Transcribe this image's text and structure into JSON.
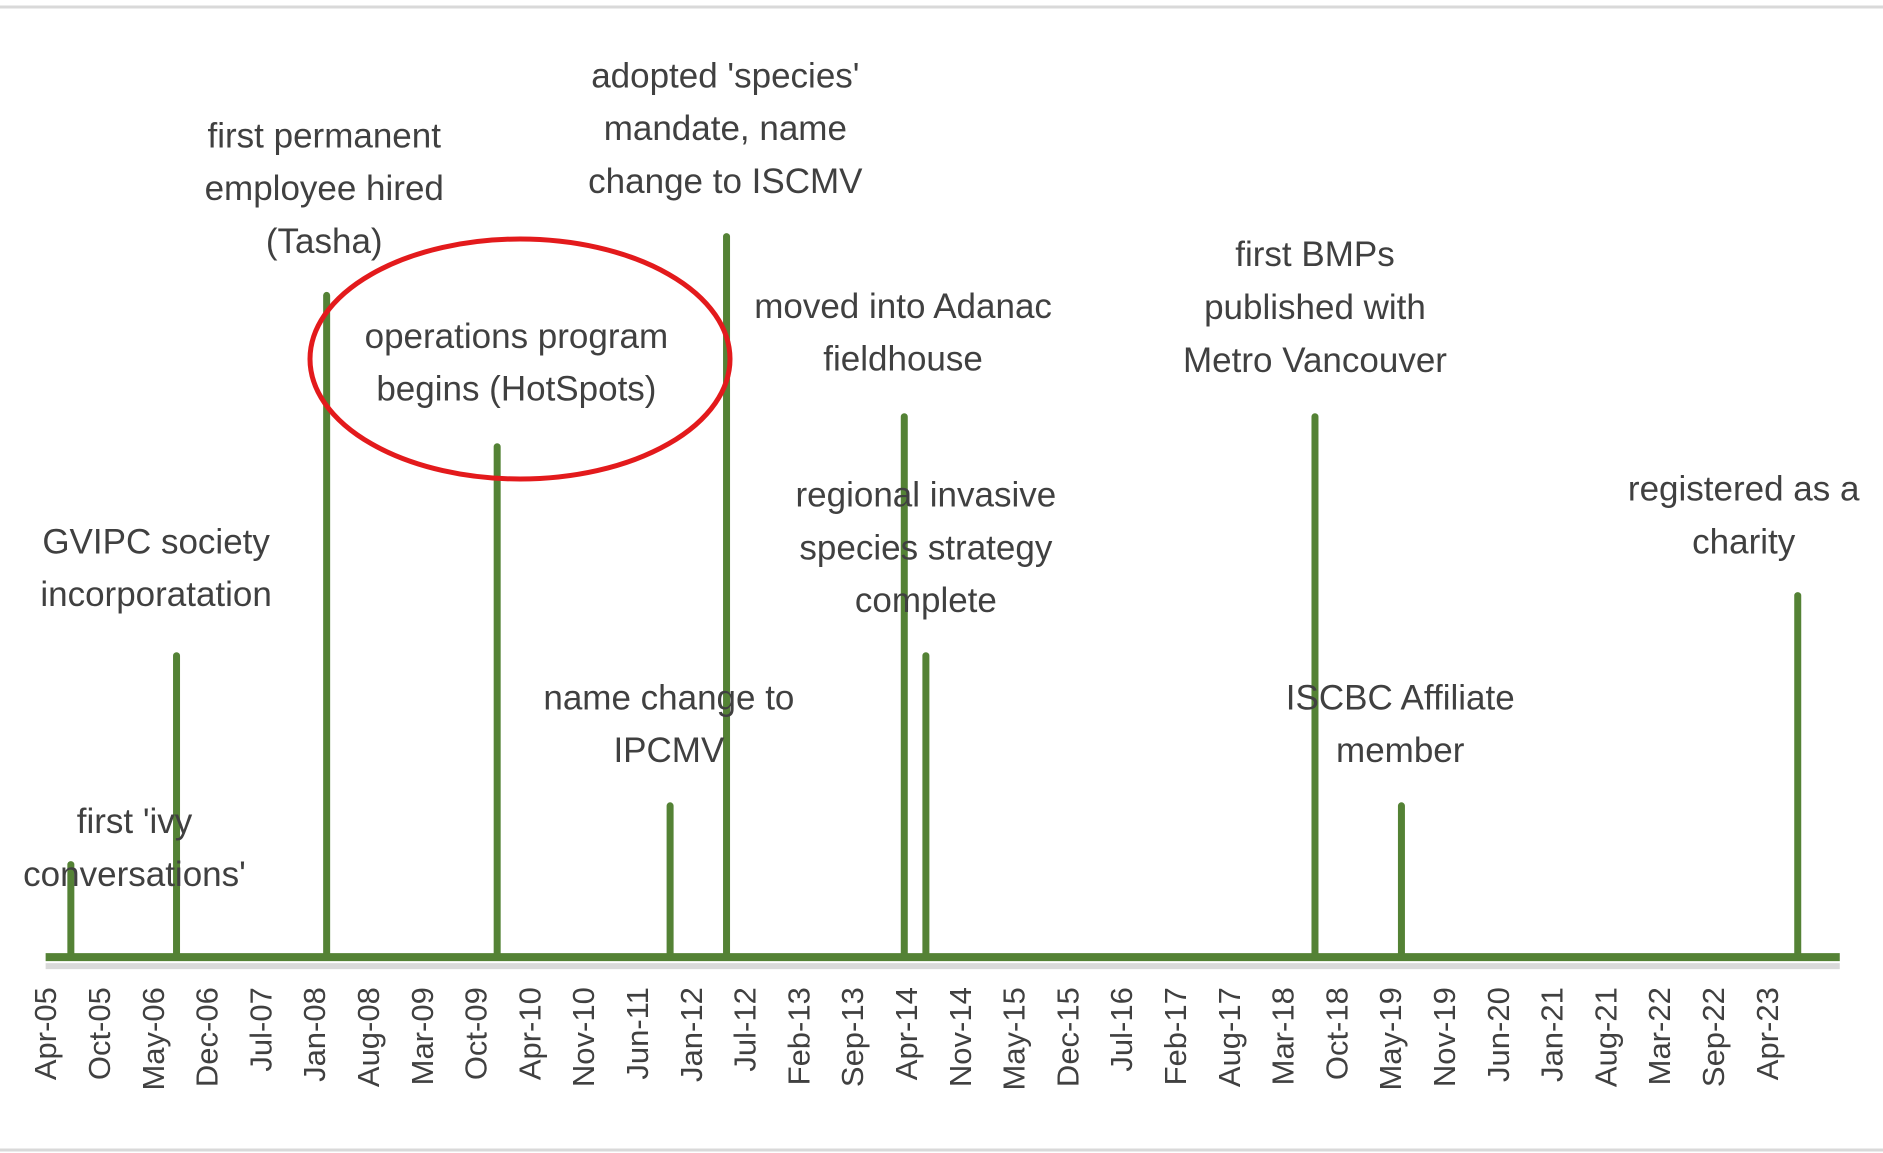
{
  "chart_data": {
    "type": "timeline",
    "x": [
      "Apr-05",
      "Oct-05",
      "May-06",
      "Dec-06",
      "Jul-07",
      "Jan-08",
      "Aug-08",
      "Mar-09",
      "Oct-09",
      "Apr-10",
      "Nov-10",
      "Jun-11",
      "Jan-12",
      "Jul-12",
      "Feb-13",
      "Sep-13",
      "Apr-14",
      "Nov-14",
      "May-15",
      "Dec-15",
      "Jul-16",
      "Feb-17",
      "Aug-17",
      "Mar-18",
      "Oct-18",
      "May-19",
      "Nov-19",
      "Jun-20",
      "Jan-21",
      "Aug-21",
      "Mar-22",
      "Sep-22",
      "Apr-23"
    ],
    "color": "#548235",
    "events": [
      {
        "label": [
          "first 'ivy",
          "conversations'"
        ]
      },
      {
        "label": [
          "GVIPC society",
          "incorporatation"
        ]
      },
      {
        "label": [
          "first permanent",
          "employee hired",
          "(Tasha)"
        ]
      },
      {
        "label": [
          "operations program",
          "begins (HotSpots)"
        ]
      },
      {
        "label": [
          "name change to",
          "IPCMV"
        ]
      },
      {
        "label": [
          "adopted 'species'",
          "mandate, name",
          "change to ISCMV"
        ]
      },
      {
        "label": [
          "moved into Adanac",
          "fieldhouse"
        ]
      },
      {
        "label": [
          "regional invasive",
          "species strategy",
          "complete"
        ]
      },
      {
        "label": [
          "first BMPs",
          "published with",
          "Metro Vancouver"
        ]
      },
      {
        "label": [
          "ISCBC Affiliate",
          "member"
        ]
      },
      {
        "label": [
          "registered as a",
          "charity"
        ]
      }
    ]
  }
}
